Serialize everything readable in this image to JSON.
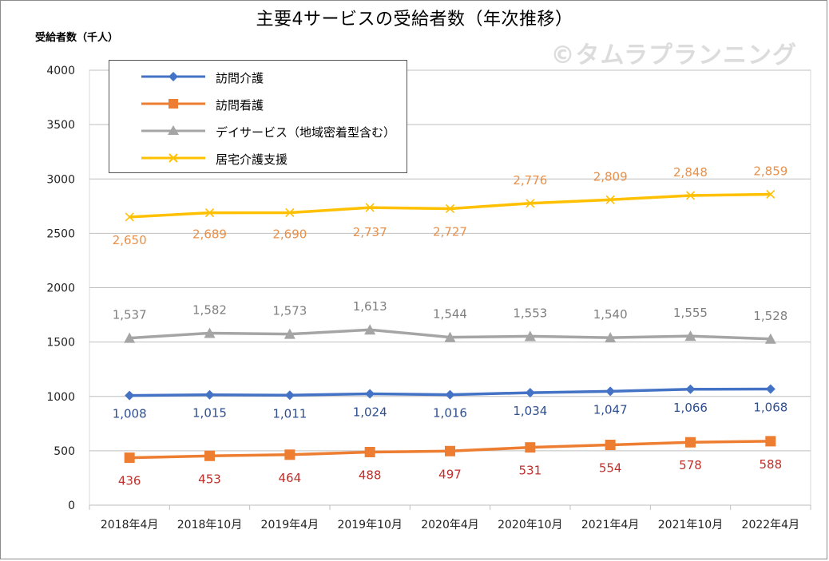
{
  "chart_data": {
    "type": "line",
    "title": "主要4サービスの受給者数（年次推移）",
    "ylabel": "受給者数（千人）",
    "watermark": "©タムラプランニング",
    "ylim": [
      0,
      4000
    ],
    "yticks": [
      "0",
      "500",
      "1000",
      "1500",
      "2000",
      "2500",
      "3000",
      "3500",
      "4000"
    ],
    "ytick_values": [
      0,
      500,
      1000,
      1500,
      2000,
      2500,
      3000,
      3500,
      4000
    ],
    "categories": [
      "2018年4月",
      "2018年10月",
      "2019年4月",
      "2019年10月",
      "2020年4月",
      "2020年10月",
      "2021年4月",
      "2021年10月",
      "2022年4月"
    ],
    "grid": true,
    "legend_position": "top-left",
    "series": [
      {
        "name": "訪問介護",
        "color": "#4472c4",
        "label_color": "#2f4f8f",
        "marker": "diamond",
        "values": [
          1008,
          1015,
          1011,
          1024,
          1016,
          1034,
          1047,
          1066,
          1068
        ],
        "labels": [
          "1,008",
          "1,015",
          "1,011",
          "1,024",
          "1,016",
          "1,034",
          "1,047",
          "1,066",
          "1,068"
        ]
      },
      {
        "name": "訪問看護",
        "color": "#ed7d31",
        "label_color": "#c0302a",
        "marker": "square",
        "values": [
          436,
          453,
          464,
          488,
          497,
          531,
          554,
          578,
          588
        ],
        "labels": [
          "436",
          "453",
          "464",
          "488",
          "497",
          "531",
          "554",
          "578",
          "588"
        ]
      },
      {
        "name": "デイサービス（地域密着型含む）",
        "color": "#a5a5a5",
        "label_color": "#7f7f7f",
        "marker": "triangle",
        "values": [
          1537,
          1582,
          1573,
          1613,
          1544,
          1553,
          1540,
          1555,
          1528
        ],
        "labels": [
          "1,537",
          "1,582",
          "1,573",
          "1,613",
          "1,544",
          "1,553",
          "1,540",
          "1,555",
          "1,528"
        ]
      },
      {
        "name": "居宅介護支援",
        "color": "#ffc000",
        "label_color": "#e8904a",
        "marker": "x",
        "values": [
          2650,
          2689,
          2690,
          2737,
          2727,
          2776,
          2809,
          2848,
          2859
        ],
        "labels": [
          "2,650",
          "2,689",
          "2,690",
          "2,737",
          "2,727",
          "2,776",
          "2,809",
          "2,848",
          "2,859"
        ]
      }
    ]
  }
}
